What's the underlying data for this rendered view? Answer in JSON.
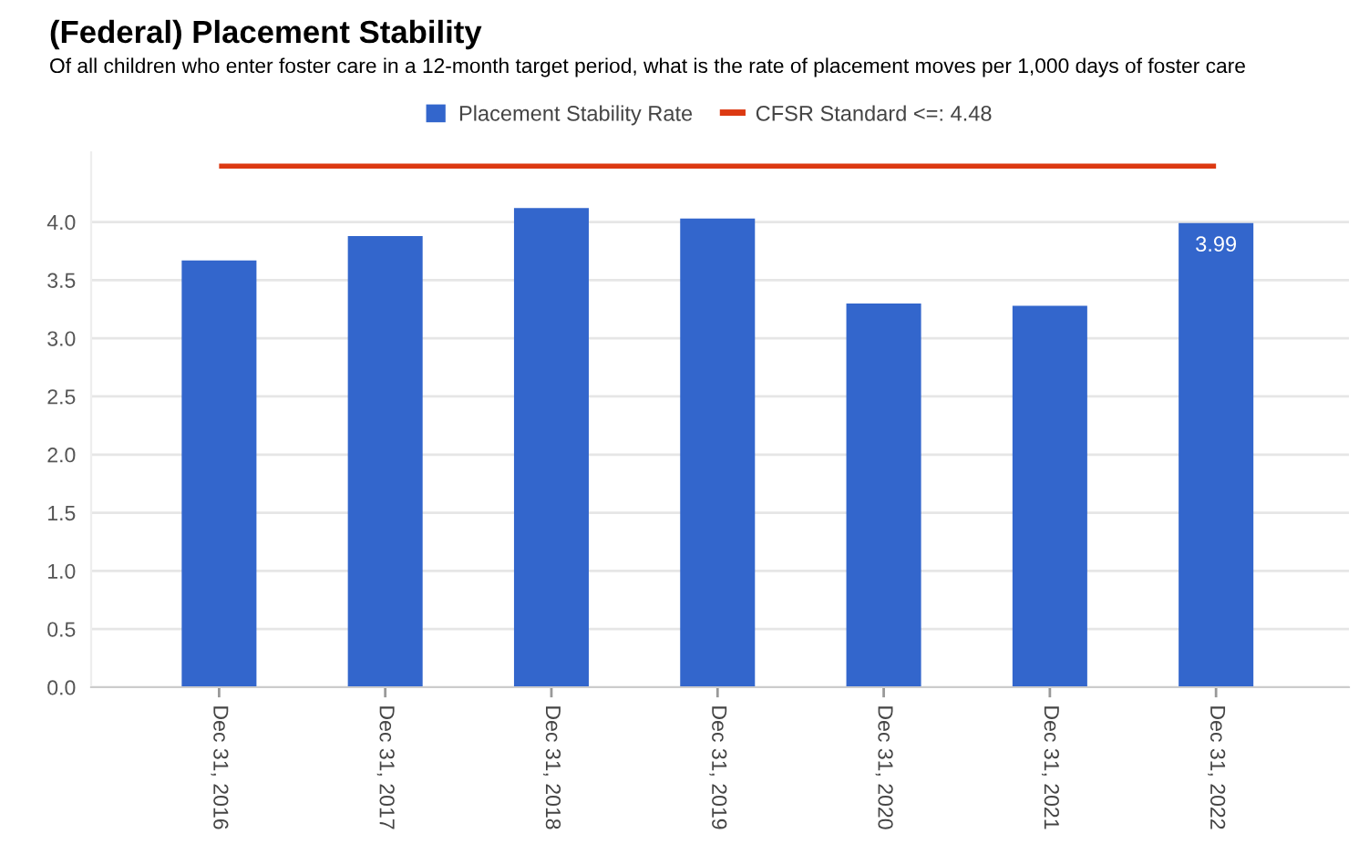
{
  "chart_data": {
    "type": "bar",
    "title": "(Federal) Placement Stability",
    "subtitle": "Of all children who enter foster care in a 12-month target period, what is the rate of placement moves per 1,000 days of foster care",
    "categories": [
      "Dec 31, 2016",
      "Dec 31, 2017",
      "Dec 31, 2018",
      "Dec 31, 2019",
      "Dec 31, 2020",
      "Dec 31, 2021",
      "Dec 31, 2022"
    ],
    "series": [
      {
        "name": "Placement Stability Rate",
        "color": "#3366cc",
        "values": [
          3.67,
          3.88,
          4.12,
          4.03,
          3.3,
          3.28,
          3.99
        ],
        "value_labels": [
          null,
          null,
          null,
          null,
          null,
          null,
          "3.99"
        ]
      },
      {
        "name": "CFSR Standard <=: 4.48",
        "type": "line",
        "color": "#dc3912",
        "values": [
          4.48,
          4.48,
          4.48,
          4.48,
          4.48,
          4.48,
          4.48
        ]
      }
    ],
    "ylim": [
      0.0,
      4.6
    ],
    "yticks": [
      {
        "value": 0,
        "label": "0.0"
      },
      {
        "value": 0.5,
        "label": "0.5"
      },
      {
        "value": 1,
        "label": "1.0"
      },
      {
        "value": 1.5,
        "label": "1.5"
      },
      {
        "value": 2,
        "label": "2.0"
      },
      {
        "value": 2.5,
        "label": "2.5"
      },
      {
        "value": 3,
        "label": "3.0"
      },
      {
        "value": 3.5,
        "label": "3.5"
      },
      {
        "value": 4,
        "label": "4.0"
      }
    ],
    "grid": "y",
    "legend": "top"
  }
}
